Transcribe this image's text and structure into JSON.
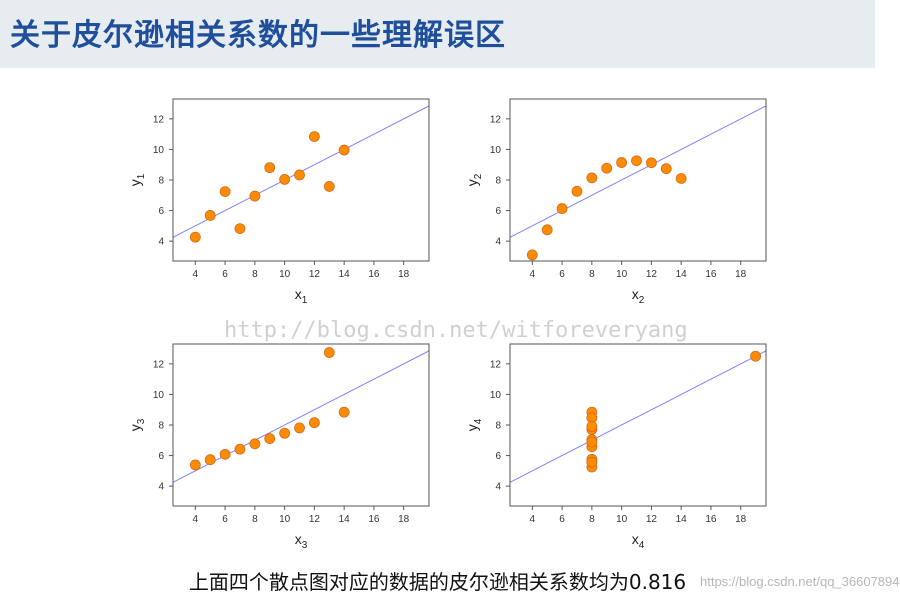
{
  "header": {
    "title": "关于皮尔逊相关系数的一些理解误区"
  },
  "caption": "上面四个散点图对应的数据的皮尔逊相关系数均为0.816",
  "watermark": "http://blog.csdn.net/witforeveryang",
  "watermark2": "https://blog.csdn.net/qq_36607894",
  "colors": {
    "point": "#ff8c00",
    "point_edge": "#d2691e",
    "fit_line": "#8080ff",
    "axis": "#555555",
    "title": "#1f4e9a"
  },
  "chart_data": [
    {
      "type": "scatter",
      "xlabel_main": "x",
      "xlabel_sub": "1",
      "ylabel_main": "y",
      "ylabel_sub": "1",
      "xlim": [
        2.5,
        19.7
      ],
      "ylim": [
        2.7,
        13.3
      ],
      "xticks": [
        4,
        6,
        8,
        10,
        12,
        14,
        16,
        18
      ],
      "yticks": [
        4,
        6,
        8,
        10,
        12
      ],
      "x": [
        10,
        8,
        13,
        9,
        11,
        14,
        6,
        4,
        12,
        7,
        5
      ],
      "y": [
        8.04,
        6.95,
        7.58,
        8.81,
        8.33,
        9.96,
        7.24,
        4.26,
        10.84,
        4.82,
        5.68
      ],
      "fit": {
        "intercept": 3.0,
        "slope": 0.5
      }
    },
    {
      "type": "scatter",
      "xlabel_main": "x",
      "xlabel_sub": "2",
      "ylabel_main": "y",
      "ylabel_sub": "2",
      "xlim": [
        2.5,
        19.7
      ],
      "ylim": [
        2.7,
        13.3
      ],
      "xticks": [
        4,
        6,
        8,
        10,
        12,
        14,
        16,
        18
      ],
      "yticks": [
        4,
        6,
        8,
        10,
        12
      ],
      "x": [
        10,
        8,
        13,
        9,
        11,
        14,
        6,
        4,
        12,
        7,
        5
      ],
      "y": [
        9.14,
        8.14,
        8.74,
        8.77,
        9.26,
        8.1,
        6.13,
        3.1,
        9.13,
        7.26,
        4.74
      ],
      "fit": {
        "intercept": 3.0,
        "slope": 0.5
      }
    },
    {
      "type": "scatter",
      "xlabel_main": "x",
      "xlabel_sub": "3",
      "ylabel_main": "y",
      "ylabel_sub": "3",
      "xlim": [
        2.5,
        19.7
      ],
      "ylim": [
        2.7,
        13.3
      ],
      "xticks": [
        4,
        6,
        8,
        10,
        12,
        14,
        16,
        18
      ],
      "yticks": [
        4,
        6,
        8,
        10,
        12
      ],
      "x": [
        10,
        8,
        13,
        9,
        11,
        14,
        6,
        4,
        12,
        7,
        5
      ],
      "y": [
        7.46,
        6.77,
        12.74,
        7.11,
        7.81,
        8.84,
        6.08,
        5.39,
        8.15,
        6.42,
        5.73
      ],
      "fit": {
        "intercept": 3.0,
        "slope": 0.5
      }
    },
    {
      "type": "scatter",
      "xlabel_main": "x",
      "xlabel_sub": "4",
      "ylabel_main": "y",
      "ylabel_sub": "4",
      "xlim": [
        2.5,
        19.7
      ],
      "ylim": [
        2.7,
        13.3
      ],
      "xticks": [
        4,
        6,
        8,
        10,
        12,
        14,
        16,
        18
      ],
      "yticks": [
        4,
        6,
        8,
        10,
        12
      ],
      "x": [
        8,
        8,
        8,
        8,
        8,
        8,
        8,
        19,
        8,
        8,
        8
      ],
      "y": [
        6.58,
        5.76,
        7.71,
        8.84,
        8.47,
        7.04,
        5.25,
        12.5,
        5.56,
        7.91,
        6.89
      ],
      "fit": {
        "intercept": 3.0,
        "slope": 0.5
      }
    }
  ]
}
